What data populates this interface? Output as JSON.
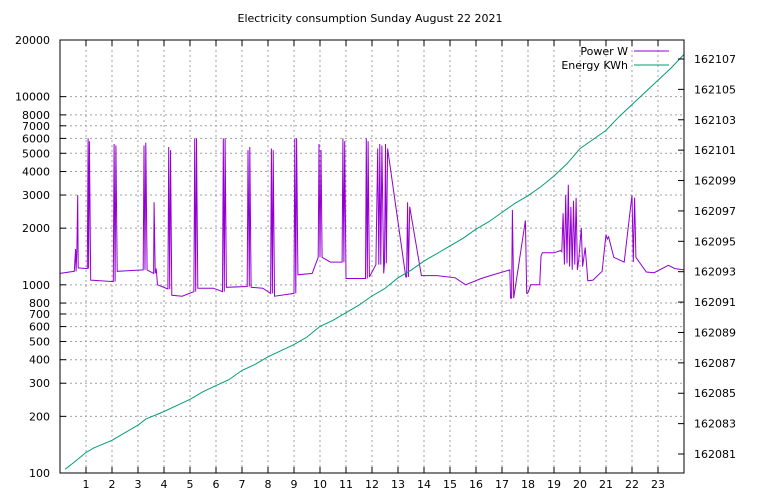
{
  "chart_data": {
    "type": "line",
    "title": "Electricity consumption Sunday August 22 2021",
    "xlabel": "",
    "ylabel": "",
    "x_range": [
      0,
      24
    ],
    "x_ticks": [
      1,
      2,
      3,
      4,
      5,
      6,
      7,
      8,
      9,
      10,
      11,
      12,
      13,
      14,
      15,
      16,
      17,
      18,
      19,
      20,
      21,
      22,
      23
    ],
    "y_scale": "log",
    "y_range": [
      100,
      20000
    ],
    "y_ticks": [
      100,
      200,
      300,
      400,
      500,
      600,
      700,
      800,
      1000,
      2000,
      3000,
      4000,
      5000,
      6000,
      7000,
      8000,
      10000,
      20000
    ],
    "y2_range": [
      162079.75,
      162108.25
    ],
    "y2_ticks": [
      162081,
      162083,
      162085,
      162087,
      162089,
      162091,
      162093,
      162095,
      162097,
      162099,
      162101,
      162103,
      162105,
      162107
    ],
    "grid": true,
    "legend_position": "top-right",
    "series": [
      {
        "name": "Power W",
        "axis": "left",
        "color": "#9400d3",
        "x": [
          0,
          0.55,
          0.6,
          0.62,
          0.65,
          0.68,
          0.7,
          1.05,
          1.08,
          1.1,
          1.13,
          1.18,
          2.05,
          2.08,
          2.12,
          2.15,
          2.2,
          3.2,
          3.23,
          3.27,
          3.3,
          3.35,
          3.6,
          3.62,
          3.66,
          3.7,
          3.75,
          4.15,
          4.18,
          4.22,
          4.25,
          4.3,
          4.7,
          5.15,
          5.18,
          5.22,
          5.25,
          5.3,
          5.9,
          6.25,
          6.28,
          6.32,
          6.35,
          6.4,
          7.2,
          7.23,
          7.28,
          7.3,
          7.35,
          7.8,
          8.1,
          8.13,
          8.17,
          8.2,
          8.25,
          9.0,
          9.03,
          9.07,
          9.1,
          9.15,
          9.7,
          9.93,
          9.96,
          10.0,
          10.04,
          10.08,
          10.4,
          10.85,
          10.88,
          10.92,
          10.95,
          11.0,
          11.75,
          11.78,
          11.82,
          11.85,
          11.9,
          12.15,
          12.22,
          12.26,
          12.3,
          12.34,
          12.38,
          12.45,
          12.48,
          12.52,
          12.55,
          12.6,
          13.3,
          13.33,
          13.37,
          13.4,
          13.45,
          13.9,
          14.5,
          15.2,
          15.6,
          16.2,
          16.55,
          17.3,
          17.33,
          17.37,
          17.4,
          17.45,
          17.9,
          17.95,
          17.98,
          18.02,
          18.1,
          18.45,
          18.5,
          18.55,
          19.0,
          19.25,
          19.3,
          19.35,
          19.4,
          19.45,
          19.5,
          19.55,
          19.6,
          19.65,
          19.7,
          19.75,
          19.8,
          19.85,
          19.9,
          19.95,
          20.05,
          20.1,
          20.2,
          20.3,
          20.5,
          20.85,
          21.0,
          21.05,
          21.1,
          21.3,
          21.55,
          21.7,
          22.0,
          22.05,
          22.1,
          22.15,
          22.55,
          22.85,
          23.4,
          23.65,
          24
        ],
        "y": [
          1150,
          1180,
          1550,
          1180,
          1550,
          3000,
          1230,
          1220,
          6000,
          1220,
          5800,
          1060,
          1040,
          5600,
          1040,
          5500,
          1180,
          1200,
          5500,
          1200,
          5700,
          1200,
          1150,
          2750,
          1150,
          1220,
          1000,
          950,
          5400,
          950,
          5200,
          880,
          870,
          920,
          6000,
          920,
          6000,
          960,
          960,
          920,
          6000,
          920,
          6000,
          970,
          980,
          5200,
          980,
          5400,
          970,
          960,
          900,
          5300,
          900,
          5200,
          870,
          900,
          6000,
          900,
          6000,
          1130,
          1150,
          1400,
          5600,
          1400,
          5200,
          1400,
          1320,
          1320,
          6000,
          1320,
          5800,
          1080,
          1080,
          6000,
          1080,
          5800,
          1100,
          1280,
          5300,
          1280,
          5600,
          1280,
          5500,
          1150,
          1300,
          5600,
          1300,
          5300,
          1100,
          1100,
          2750,
          1100,
          2600,
          1120,
          1120,
          1090,
          1000,
          1080,
          1120,
          1200,
          850,
          850,
          2500,
          850,
          2200,
          900,
          900,
          920,
          1000,
          1000,
          1420,
          1480,
          1480,
          1520,
          1500,
          2400,
          1280,
          3000,
          1300,
          3400,
          1250,
          2600,
          1200,
          2800,
          1280,
          2900,
          1200,
          1350,
          2000,
          1250,
          1580,
          1050,
          1060,
          1180,
          1850,
          1750,
          1800,
          1400,
          1350,
          1320,
          3000,
          1320,
          2900,
          1400,
          1170,
          1160,
          1270,
          1220,
          1200
        ]
      },
      {
        "name": "Energy KWh",
        "axis": "right",
        "color": "#009e73",
        "x": [
          0.2,
          0.5,
          1.0,
          1.3,
          2.0,
          2.5,
          3.0,
          3.3,
          4.0,
          4.5,
          5.0,
          5.5,
          6.0,
          6.5,
          7.0,
          7.5,
          8.0,
          8.5,
          9.0,
          9.5,
          10.0,
          10.5,
          11.0,
          11.5,
          12.0,
          12.5,
          13.0,
          13.5,
          14.0,
          14.5,
          15.0,
          15.5,
          16.0,
          16.5,
          17.0,
          17.5,
          18.0,
          18.5,
          19.0,
          19.5,
          20.0,
          20.5,
          21.0,
          21.5,
          22.0,
          22.5,
          23.0,
          23.5,
          24.0
        ],
        "y": [
          162080.0,
          162080.4,
          162081.1,
          162081.4,
          162081.9,
          162082.4,
          162082.9,
          162083.3,
          162083.8,
          162084.2,
          162084.6,
          162085.1,
          162085.5,
          162085.9,
          162086.5,
          162086.9,
          162087.4,
          162087.8,
          162088.2,
          162088.7,
          162089.4,
          162089.8,
          162090.3,
          162090.8,
          162091.4,
          162091.9,
          162092.6,
          162093.1,
          162093.7,
          162094.2,
          162094.7,
          162095.2,
          162095.8,
          162096.3,
          162096.9,
          162097.5,
          162098.0,
          162098.6,
          162099.3,
          162100.1,
          162101.1,
          162101.7,
          162102.3,
          162103.2,
          162104.0,
          162104.8,
          162105.6,
          162106.4,
          162107.3
        ]
      }
    ]
  }
}
